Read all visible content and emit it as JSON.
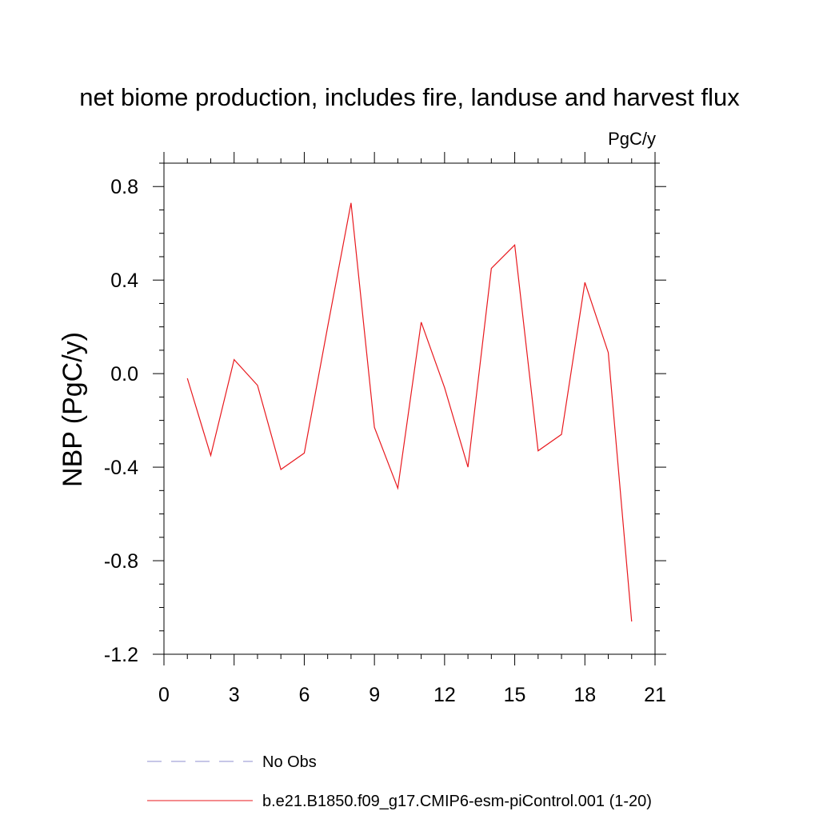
{
  "chart_data": {
    "type": "line",
    "title": "net biome production, includes fire, landuse and harvest flux",
    "units_label": "PgC/y",
    "xlabel": "",
    "ylabel": "NBP  (PgC/y)",
    "xlim": [
      0,
      21
    ],
    "ylim": [
      -1.2,
      0.9
    ],
    "xticks": [
      0,
      3,
      6,
      9,
      12,
      15,
      18,
      21
    ],
    "xtick_labels": [
      "0",
      "3",
      "6",
      "9",
      "12",
      "15",
      "18",
      "21"
    ],
    "yticks": [
      -1.2,
      -0.8,
      -0.4,
      0.0,
      0.4,
      0.8
    ],
    "ytick_labels": [
      "-1.2",
      "-0.8",
      "-0.4",
      "0.0",
      "0.4",
      "0.8"
    ],
    "grid": false,
    "legend_position": "bottom-left",
    "series": [
      {
        "name": "b.e21.B1850.f09_g17.CMIP6-esm-piControl.001 (1-20)",
        "color": "#e8191e",
        "style": "solid",
        "x": [
          1,
          2,
          3,
          4,
          5,
          6,
          7,
          8,
          9,
          10,
          11,
          12,
          13,
          14,
          15,
          16,
          17,
          18,
          19,
          20
        ],
        "values": [
          -0.02,
          -0.35,
          0.06,
          -0.05,
          -0.41,
          -0.34,
          0.2,
          0.73,
          -0.23,
          -0.49,
          0.22,
          -0.06,
          -0.4,
          0.45,
          0.55,
          -0.33,
          -0.26,
          0.39,
          0.09,
          -1.06
        ]
      },
      {
        "name": "No Obs",
        "color": "#8e8ecf",
        "style": "dashed",
        "x": [],
        "values": []
      }
    ]
  }
}
